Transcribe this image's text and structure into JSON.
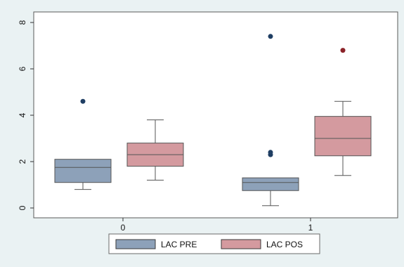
{
  "chart_data": {
    "type": "box",
    "title": "",
    "xlabel": "",
    "ylabel": "",
    "ylim": [
      0,
      8
    ],
    "yticks": [
      "0",
      "2",
      "4",
      "6",
      "8"
    ],
    "categories": [
      "0",
      "1"
    ],
    "grid": false,
    "legend_position": "bottom",
    "series": [
      {
        "name": "LAC PRE",
        "color": "#8da1b9",
        "outlier_color": "#1f3e63",
        "boxes": [
          {
            "category": "0",
            "whisker_low": 0.8,
            "q1": 1.1,
            "median": 1.75,
            "q3": 2.1,
            "whisker_high": 2.1,
            "outliers": [
              4.6
            ]
          },
          {
            "category": "1",
            "whisker_low": 0.1,
            "q1": 0.75,
            "median": 1.1,
            "q3": 1.3,
            "whisker_high": 1.3,
            "outliers": [
              2.3,
              2.4,
              7.4
            ]
          }
        ]
      },
      {
        "name": "LAC POS",
        "color": "#d49a9f",
        "outlier_color": "#8b2329",
        "boxes": [
          {
            "category": "0",
            "whisker_low": 1.2,
            "q1": 1.8,
            "median": 2.3,
            "q3": 2.8,
            "whisker_high": 3.8,
            "outliers": []
          },
          {
            "category": "1",
            "whisker_low": 1.4,
            "q1": 2.25,
            "median": 3.0,
            "q3": 3.95,
            "whisker_high": 4.6,
            "outliers": [
              6.8
            ]
          }
        ]
      }
    ]
  }
}
